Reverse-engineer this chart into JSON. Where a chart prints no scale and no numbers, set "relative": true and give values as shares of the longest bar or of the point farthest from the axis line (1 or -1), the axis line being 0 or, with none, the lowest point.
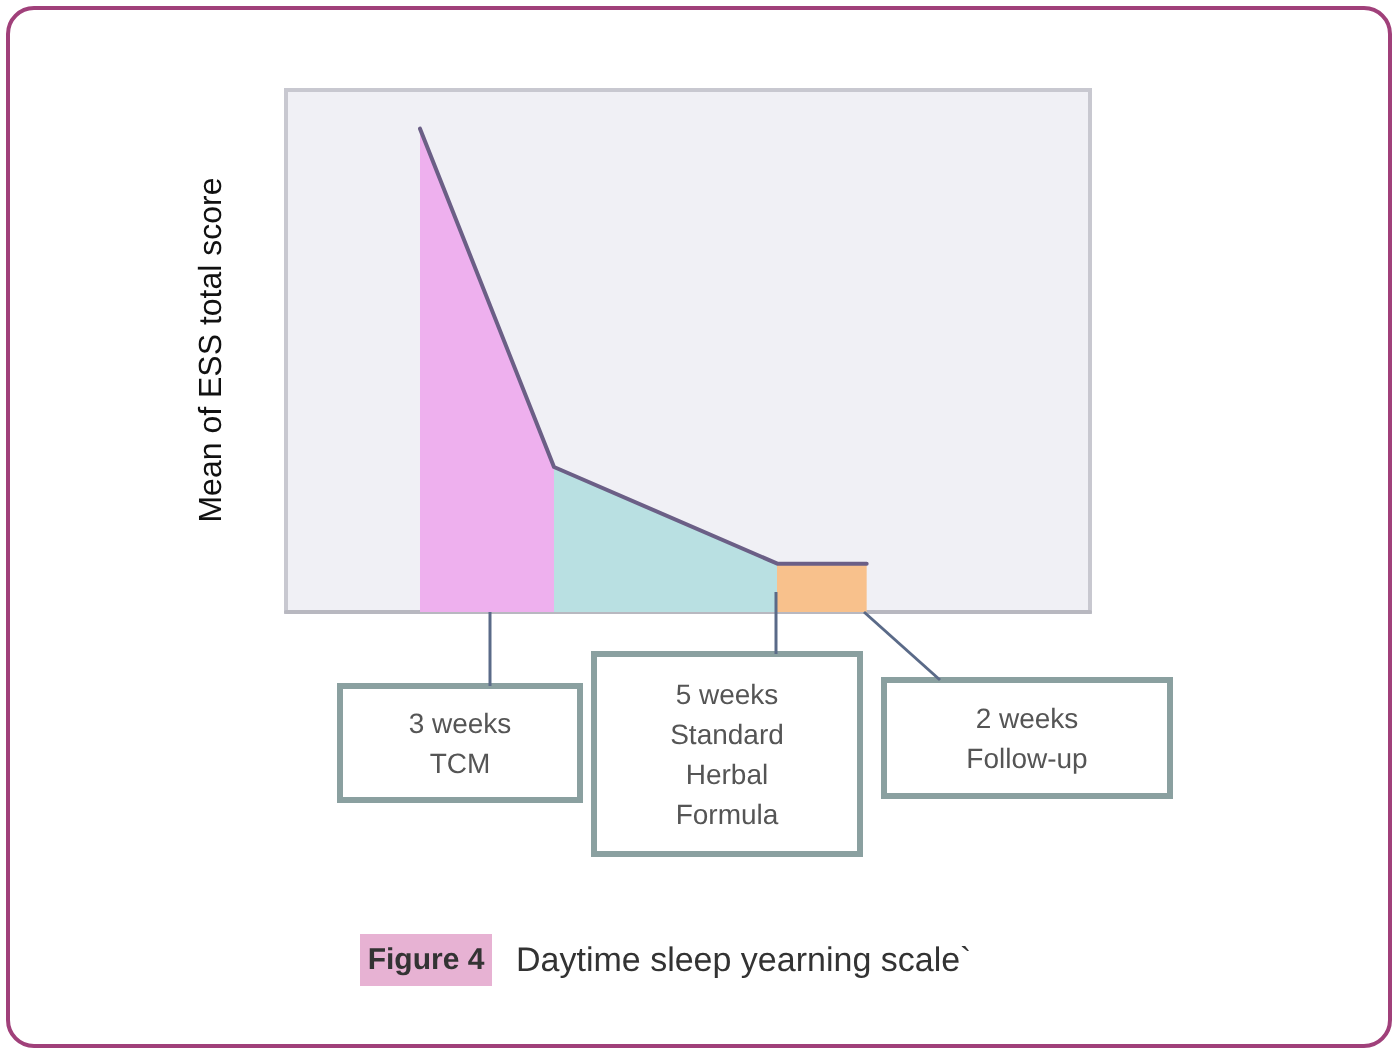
{
  "chart_data": {
    "type": "area",
    "relative": true,
    "title": "Daytime sleep yearning scale`",
    "subtitle": "Figure 4",
    "ylabel": "Mean of ESS total score",
    "marker": "none",
    "line_style": "solid",
    "categories": [
      null,
      null,
      null,
      null,
      null,
      null,
      null,
      null,
      null,
      null,
      null,
      null,
      null,
      null,
      null,
      null,
      null,
      null,
      null
    ],
    "series": [
      {
        "color": "#6b5f86",
        "values": [
          null,
          null,
          null,
          1,
          null,
          null,
          0.3,
          null,
          null,
          null,
          null,
          0.1,
          null,
          0.1,
          null,
          null,
          null,
          null,
          null
        ],
        "colors": [
          null,
          null,
          null,
          "#eeb0ee",
          null,
          null,
          "#b9e0e2",
          null,
          null,
          null,
          null,
          "#f8c18c",
          null,
          null,
          null,
          null,
          null,
          null,
          null
        ]
      }
    ],
    "annotations": [
      "3 weeks\nTCM",
      "5 weeks\nStandard\nHerbal\nFormula",
      "2 weeks\nFollow-up"
    ]
  }
}
